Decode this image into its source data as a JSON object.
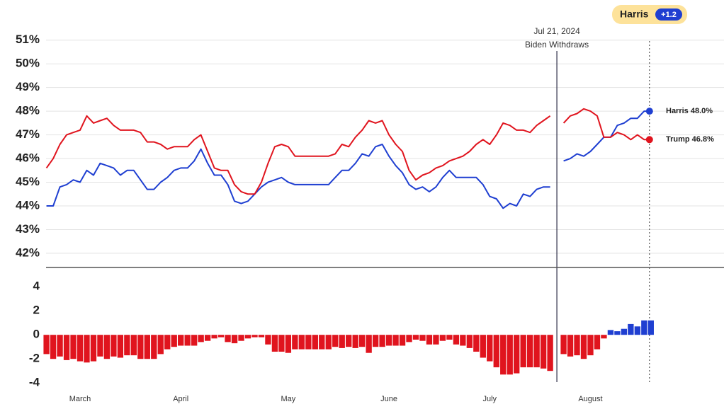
{
  "chart_data": [
    {
      "type": "line",
      "ylim": [
        41.4,
        51.5
      ],
      "yticks": [
        {
          "value": 42,
          "label": "42%"
        },
        {
          "value": 43,
          "label": "43%"
        },
        {
          "value": 44,
          "label": "44%"
        },
        {
          "value": 45,
          "label": "45%"
        },
        {
          "value": 46,
          "label": "46%"
        },
        {
          "value": 47,
          "label": "47%"
        },
        {
          "value": 48,
          "label": "48%"
        },
        {
          "value": 49,
          "label": "49%"
        },
        {
          "value": 50,
          "label": "50%"
        },
        {
          "value": 51,
          "label": "51%"
        }
      ],
      "grid": true,
      "categories": [
        null,
        null,
        null,
        null,
        null,
        "March",
        null,
        null,
        null,
        null,
        null,
        null,
        null,
        null,
        null,
        null,
        null,
        null,
        null,
        null,
        "April",
        null,
        null,
        null,
        null,
        null,
        null,
        null,
        null,
        null,
        null,
        null,
        null,
        null,
        null,
        null,
        "May",
        null,
        null,
        null,
        null,
        null,
        null,
        null,
        null,
        null,
        null,
        null,
        null,
        null,
        null,
        "June",
        null,
        null,
        null,
        null,
        null,
        null,
        null,
        null,
        null,
        null,
        null,
        null,
        null,
        null,
        "July",
        null,
        null,
        null,
        null,
        null,
        null,
        null,
        null,
        null,
        null,
        null,
        null,
        null,
        null,
        "August",
        null,
        null,
        null,
        null,
        null,
        null,
        null,
        null,
        null
      ],
      "series": [
        {
          "name": "Harris",
          "color": "#1f3fd1",
          "end_label": "Harris 48.0%",
          "values": [
            44.0,
            44.0,
            44.8,
            44.9,
            45.1,
            45.0,
            45.5,
            45.3,
            45.8,
            45.7,
            45.6,
            45.3,
            45.5,
            45.5,
            45.1,
            44.7,
            44.7,
            45.0,
            45.2,
            45.5,
            45.6,
            45.6,
            45.9,
            46.4,
            45.8,
            45.3,
            45.3,
            44.9,
            44.2,
            44.1,
            44.2,
            44.5,
            44.8,
            45.0,
            45.1,
            45.2,
            45.0,
            44.9,
            44.9,
            44.9,
            44.9,
            44.9,
            44.9,
            45.2,
            45.5,
            45.5,
            45.8,
            46.2,
            46.1,
            46.5,
            46.6,
            46.1,
            45.7,
            45.4,
            44.9,
            44.7,
            44.8,
            44.6,
            44.8,
            45.2,
            45.5,
            45.2,
            45.2,
            45.2,
            45.2,
            44.9,
            44.4,
            44.3,
            43.9,
            44.1,
            44.0,
            44.5,
            44.4,
            44.7,
            44.8,
            44.8,
            null,
            45.9,
            46.0,
            46.2,
            46.1,
            46.3,
            46.6,
            46.9,
            46.9,
            47.4,
            47.5,
            47.7,
            47.7,
            48.0,
            48.0
          ]
        },
        {
          "name": "Trump",
          "color": "#e0141e",
          "end_label": "Trump 46.8%",
          "values": [
            45.6,
            46.0,
            46.6,
            47.0,
            47.1,
            47.2,
            47.8,
            47.5,
            47.6,
            47.7,
            47.4,
            47.2,
            47.2,
            47.2,
            47.1,
            46.7,
            46.7,
            46.6,
            46.4,
            46.5,
            46.5,
            46.5,
            46.8,
            47.0,
            46.3,
            45.6,
            45.5,
            45.5,
            44.9,
            44.6,
            44.5,
            44.5,
            45.0,
            45.8,
            46.5,
            46.6,
            46.5,
            46.1,
            46.1,
            46.1,
            46.1,
            46.1,
            46.1,
            46.2,
            46.6,
            46.5,
            46.9,
            47.2,
            47.6,
            47.5,
            47.6,
            47.0,
            46.6,
            46.3,
            45.5,
            45.1,
            45.3,
            45.4,
            45.6,
            45.7,
            45.9,
            46.0,
            46.1,
            46.3,
            46.6,
            46.8,
            46.6,
            47.0,
            47.5,
            47.4,
            47.2,
            47.2,
            47.1,
            47.4,
            47.6,
            47.8,
            null,
            47.5,
            47.8,
            47.9,
            48.1,
            48.0,
            47.8,
            46.9,
            46.9,
            47.1,
            47.0,
            46.8,
            47.0,
            46.8,
            46.8
          ]
        }
      ],
      "annotation": {
        "index": 76,
        "date": "Jul 21, 2024",
        "text": "Biden Withdraws"
      },
      "badge": {
        "name": "Harris",
        "label": "+1.2"
      }
    },
    {
      "type": "bar",
      "ylim": [
        -4.4,
        5.6
      ],
      "yticks": [
        4,
        2,
        0,
        -2,
        -4
      ],
      "positive_color": "#1f3fd1",
      "negative_color": "#e0141e",
      "categories": [
        null,
        null,
        null,
        null,
        null,
        "March",
        null,
        null,
        null,
        null,
        null,
        null,
        null,
        null,
        null,
        null,
        null,
        null,
        null,
        null,
        "April",
        null,
        null,
        null,
        null,
        null,
        null,
        null,
        null,
        null,
        null,
        null,
        null,
        null,
        null,
        null,
        "May",
        null,
        null,
        null,
        null,
        null,
        null,
        null,
        null,
        null,
        null,
        null,
        null,
        null,
        null,
        "June",
        null,
        null,
        null,
        null,
        null,
        null,
        null,
        null,
        null,
        null,
        null,
        null,
        null,
        null,
        "July",
        null,
        null,
        null,
        null,
        null,
        null,
        null,
        null,
        null,
        null,
        null,
        null,
        null,
        null,
        "August",
        null,
        null,
        null,
        null,
        null,
        null,
        null,
        null,
        null
      ],
      "values": [
        -1.6,
        -2.0,
        -1.8,
        -2.1,
        -2.0,
        -2.2,
        -2.3,
        -2.2,
        -1.8,
        -2.0,
        -1.8,
        -1.9,
        -1.7,
        -1.7,
        -2.0,
        -2.0,
        -2.0,
        -1.6,
        -1.2,
        -1.0,
        -0.9,
        -0.9,
        -0.9,
        -0.6,
        -0.5,
        -0.3,
        -0.2,
        -0.6,
        -0.7,
        -0.5,
        -0.3,
        -0.2,
        -0.2,
        -0.8,
        -1.4,
        -1.4,
        -1.5,
        -1.2,
        -1.2,
        -1.2,
        -1.2,
        -1.2,
        -1.2,
        -1.0,
        -1.1,
        -1.0,
        -1.1,
        -1.0,
        -1.5,
        -1.0,
        -1.0,
        -0.9,
        -0.9,
        -0.9,
        -0.6,
        -0.4,
        -0.5,
        -0.8,
        -0.8,
        -0.5,
        -0.4,
        -0.8,
        -0.9,
        -1.1,
        -1.4,
        -1.9,
        -2.2,
        -2.7,
        -3.3,
        -3.3,
        -3.2,
        -2.7,
        -2.7,
        -2.7,
        -2.8,
        -3.0,
        null,
        -1.6,
        -1.8,
        -1.7,
        -2.0,
        -1.7,
        -1.2,
        -0.3,
        0.4,
        0.3,
        0.5,
        0.9,
        0.7,
        1.2,
        1.2
      ]
    }
  ]
}
